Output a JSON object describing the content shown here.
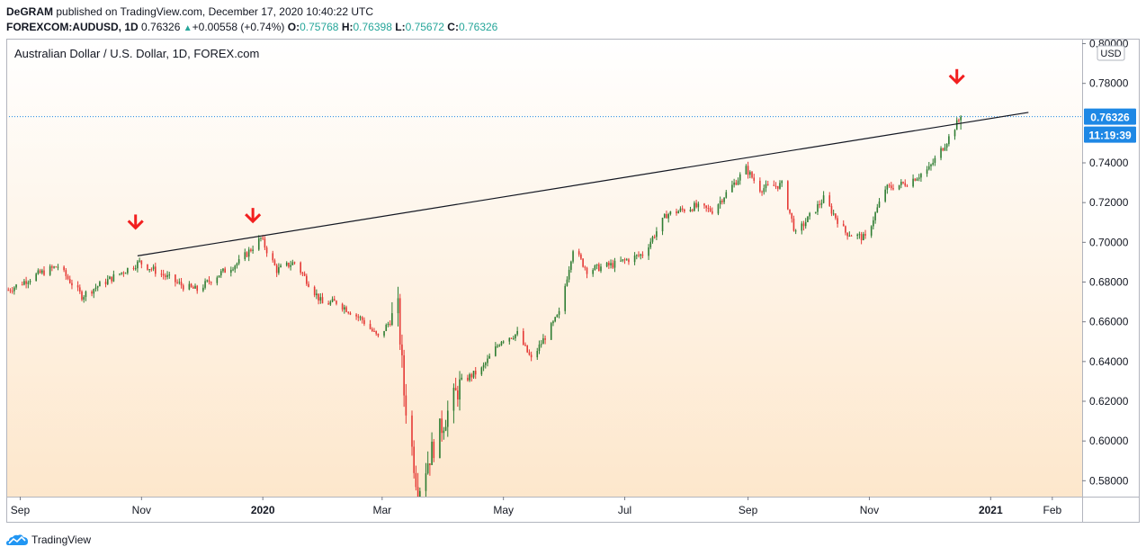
{
  "header": {
    "author": "DeGRAM",
    "published": " published on TradingView.com, December 17, 2020 10:40:22 UTC",
    "symbol": "FOREXCOM:AUDUSD, 1D",
    "last": "0.76326",
    "change": "+0.00558 (+0.74%)",
    "o_label": "O:",
    "o": "0.75768",
    "h_label": "H:",
    "h": "0.76398",
    "l_label": "L:",
    "l": "0.75672",
    "c_label": "C:",
    "c": "0.76326"
  },
  "colors": {
    "up": "#2e7d32",
    "down": "#e53935",
    "arrow": "#f21f1f",
    "accent": "#1e88e5",
    "grad_top": "#ffffff",
    "grad_bottom": "#fde7cc"
  },
  "footer": {
    "brand": "TradingView",
    "logo_icon": "tradingview-cloud-icon"
  },
  "chart_data": {
    "type": "candlestick",
    "title": "Australian Dollar / U.S. Dollar, 1D, FOREX.com",
    "currency": "USD",
    "ylim": [
      0.572,
      0.8025
    ],
    "yticks": [
      "0.80000",
      "0.78000",
      "0.74000",
      "0.72000",
      "0.70000",
      "0.68000",
      "0.66000",
      "0.64000",
      "0.62000",
      "0.60000",
      "0.58000"
    ],
    "xticks": [
      "Sep",
      "Nov",
      "2020",
      "Mar",
      "May",
      "Jul",
      "Sep",
      "Nov",
      "2021",
      "Feb"
    ],
    "xlim": [
      "2019-08-25",
      "2021-02-16"
    ],
    "tick_dates": [
      "2019-09-01",
      "2019-11-01",
      "2020-01-01",
      "2020-03-01",
      "2020-05-01",
      "2020-07-01",
      "2020-09-01",
      "2020-11-01",
      "2021-01-01",
      "2021-02-01"
    ],
    "last_price": "0.76326",
    "countdown": "11:19:39",
    "trendline": {
      "from": {
        "date": "2019-10-30",
        "price": 0.6932
      },
      "to": {
        "date": "2021-01-20",
        "price": 0.7654
      }
    },
    "arrows": [
      {
        "date": "2019-10-29",
        "price": 0.7063
      },
      {
        "date": "2019-12-27",
        "price": 0.7096
      },
      {
        "date": "2020-12-15",
        "price": 0.7795
      }
    ],
    "path": [
      [
        "2019-08-26",
        0.676
      ],
      [
        "2019-09-10",
        0.684
      ],
      [
        "2019-09-20",
        0.688
      ],
      [
        "2019-10-02",
        0.673
      ],
      [
        "2019-10-10",
        0.678
      ],
      [
        "2019-10-31",
        0.69
      ],
      [
        "2019-11-22",
        0.678
      ],
      [
        "2019-11-29",
        0.676
      ],
      [
        "2019-12-10",
        0.684
      ],
      [
        "2019-12-20",
        0.69
      ],
      [
        "2019-12-31",
        0.702
      ],
      [
        "2020-01-08",
        0.686
      ],
      [
        "2020-01-17",
        0.69
      ],
      [
        "2020-01-31",
        0.669
      ],
      [
        "2020-02-07",
        0.67
      ],
      [
        "2020-02-20",
        0.661
      ],
      [
        "2020-02-28",
        0.652
      ],
      [
        "2020-03-09",
        0.666
      ],
      [
        "2020-03-12",
        0.624
      ],
      [
        "2020-03-19",
        0.575
      ],
      [
        "2020-03-24",
        0.59
      ],
      [
        "2020-04-01",
        0.61
      ],
      [
        "2020-04-10",
        0.63
      ],
      [
        "2020-04-20",
        0.636
      ],
      [
        "2020-04-30",
        0.651
      ],
      [
        "2020-05-08",
        0.654
      ],
      [
        "2020-05-15",
        0.641
      ],
      [
        "2020-05-29",
        0.664
      ],
      [
        "2020-06-05",
        0.697
      ],
      [
        "2020-06-12",
        0.686
      ],
      [
        "2020-06-26",
        0.689
      ],
      [
        "2020-07-10",
        0.694
      ],
      [
        "2020-07-22",
        0.714
      ],
      [
        "2020-08-05",
        0.718
      ],
      [
        "2020-08-14",
        0.716
      ],
      [
        "2020-08-31",
        0.737
      ],
      [
        "2020-09-07",
        0.727
      ],
      [
        "2020-09-18",
        0.729
      ],
      [
        "2020-09-25",
        0.704
      ],
      [
        "2020-10-09",
        0.722
      ],
      [
        "2020-10-20",
        0.705
      ],
      [
        "2020-10-30",
        0.702
      ],
      [
        "2020-11-09",
        0.727
      ],
      [
        "2020-11-20",
        0.73
      ],
      [
        "2020-12-01",
        0.737
      ],
      [
        "2020-12-10",
        0.751
      ],
      [
        "2020-12-17",
        0.7633
      ]
    ]
  }
}
